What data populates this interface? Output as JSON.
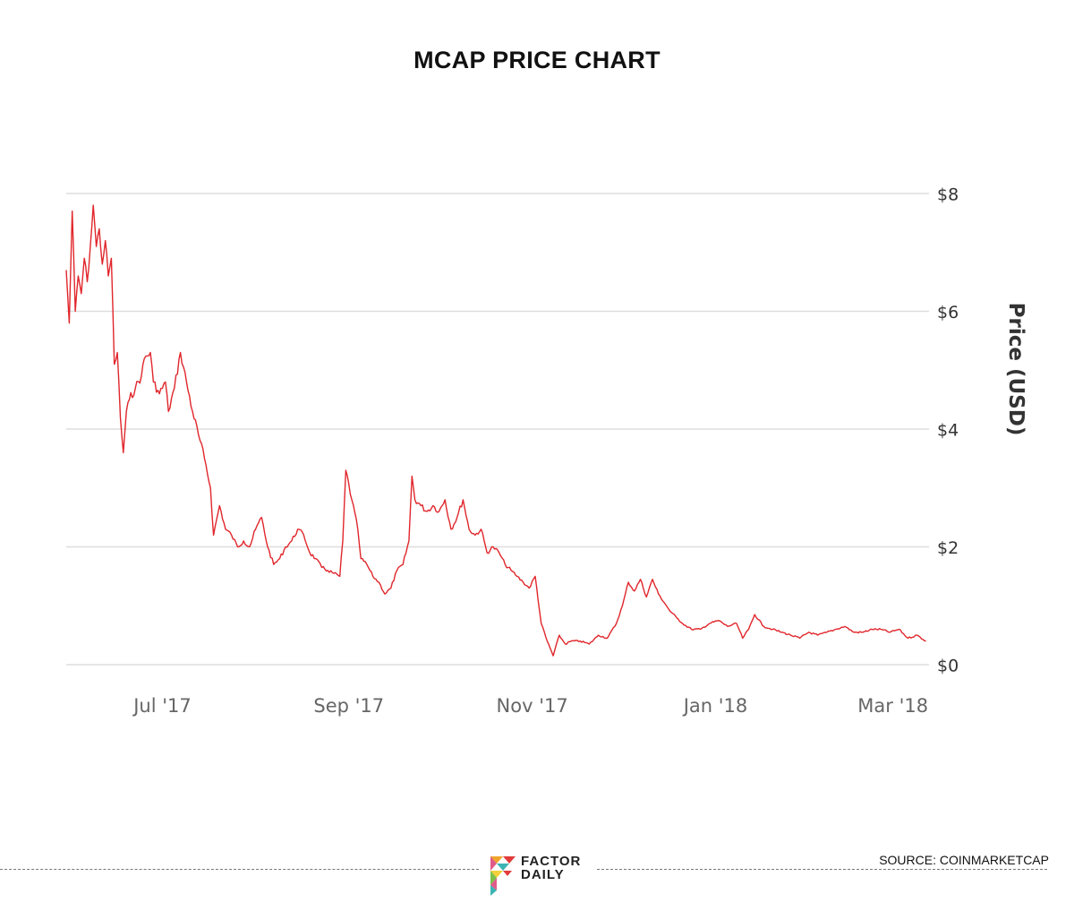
{
  "chart_data": {
    "type": "line",
    "title": "MCAP PRICE CHART",
    "ylabel": "Price (USD)",
    "xlabel": "",
    "ylim": [
      0,
      8
    ],
    "yticks": [
      {
        "value": 0,
        "label": "$0"
      },
      {
        "value": 2,
        "label": "$2"
      },
      {
        "value": 4,
        "label": "$4"
      },
      {
        "value": 6,
        "label": "$6"
      },
      {
        "value": 8,
        "label": "$8"
      }
    ],
    "xlim": [
      "2017-05-30",
      "2018-03-13"
    ],
    "xticks": [
      {
        "date": "2017-07-01",
        "label": "Jul '17"
      },
      {
        "date": "2017-09-01",
        "label": "Sep '17"
      },
      {
        "date": "2017-11-01",
        "label": "Nov '17"
      },
      {
        "date": "2018-01-01",
        "label": "Jan '18"
      },
      {
        "date": "2018-03-01",
        "label": "Mar '18"
      }
    ],
    "series": [
      {
        "name": "MCAP",
        "color": "#e0262b",
        "points": [
          [
            "2017-05-30",
            6.7
          ],
          [
            "2017-05-31",
            5.8
          ],
          [
            "2017-06-01",
            7.7
          ],
          [
            "2017-06-02",
            6.0
          ],
          [
            "2017-06-03",
            6.6
          ],
          [
            "2017-06-04",
            6.3
          ],
          [
            "2017-06-05",
            6.9
          ],
          [
            "2017-06-06",
            6.5
          ],
          [
            "2017-06-07",
            7.1
          ],
          [
            "2017-06-08",
            7.8
          ],
          [
            "2017-06-09",
            7.1
          ],
          [
            "2017-06-10",
            7.4
          ],
          [
            "2017-06-11",
            6.8
          ],
          [
            "2017-06-12",
            7.2
          ],
          [
            "2017-06-13",
            6.6
          ],
          [
            "2017-06-14",
            6.9
          ],
          [
            "2017-06-15",
            5.1
          ],
          [
            "2017-06-16",
            5.3
          ],
          [
            "2017-06-17",
            4.2
          ],
          [
            "2017-06-18",
            3.6
          ],
          [
            "2017-06-19",
            4.3
          ],
          [
            "2017-06-20",
            4.5
          ],
          [
            "2017-06-22",
            4.7
          ],
          [
            "2017-06-24",
            4.9
          ],
          [
            "2017-06-25",
            5.2
          ],
          [
            "2017-06-27",
            5.3
          ],
          [
            "2017-06-28",
            4.8
          ],
          [
            "2017-06-30",
            4.6
          ],
          [
            "2017-07-02",
            4.8
          ],
          [
            "2017-07-03",
            4.3
          ],
          [
            "2017-07-05",
            4.7
          ],
          [
            "2017-07-07",
            5.3
          ],
          [
            "2017-07-09",
            4.8
          ],
          [
            "2017-07-11",
            4.3
          ],
          [
            "2017-07-13",
            3.9
          ],
          [
            "2017-07-15",
            3.5
          ],
          [
            "2017-07-17",
            3.0
          ],
          [
            "2017-07-18",
            2.2
          ],
          [
            "2017-07-20",
            2.7
          ],
          [
            "2017-07-22",
            2.3
          ],
          [
            "2017-07-24",
            2.2
          ],
          [
            "2017-07-26",
            2.0
          ],
          [
            "2017-07-28",
            2.1
          ],
          [
            "2017-07-30",
            2.0
          ],
          [
            "2017-08-01",
            2.3
          ],
          [
            "2017-08-03",
            2.5
          ],
          [
            "2017-08-05",
            2.0
          ],
          [
            "2017-08-07",
            1.7
          ],
          [
            "2017-08-09",
            1.8
          ],
          [
            "2017-08-11",
            2.0
          ],
          [
            "2017-08-13",
            2.1
          ],
          [
            "2017-08-15",
            2.3
          ],
          [
            "2017-08-17",
            2.2
          ],
          [
            "2017-08-19",
            1.9
          ],
          [
            "2017-08-21",
            1.8
          ],
          [
            "2017-08-23",
            1.65
          ],
          [
            "2017-08-25",
            1.6
          ],
          [
            "2017-08-27",
            1.55
          ],
          [
            "2017-08-29",
            1.5
          ],
          [
            "2017-08-30",
            2.1
          ],
          [
            "2017-08-31",
            3.3
          ],
          [
            "2017-09-02",
            2.8
          ],
          [
            "2017-09-04",
            2.3
          ],
          [
            "2017-09-05",
            1.8
          ],
          [
            "2017-09-07",
            1.7
          ],
          [
            "2017-09-09",
            1.5
          ],
          [
            "2017-09-11",
            1.4
          ],
          [
            "2017-09-13",
            1.2
          ],
          [
            "2017-09-15",
            1.3
          ],
          [
            "2017-09-17",
            1.6
          ],
          [
            "2017-09-19",
            1.7
          ],
          [
            "2017-09-21",
            2.1
          ],
          [
            "2017-09-22",
            3.2
          ],
          [
            "2017-09-23",
            2.8
          ],
          [
            "2017-09-25",
            2.7
          ],
          [
            "2017-09-27",
            2.6
          ],
          [
            "2017-09-29",
            2.7
          ],
          [
            "2017-10-01",
            2.6
          ],
          [
            "2017-10-03",
            2.8
          ],
          [
            "2017-10-05",
            2.3
          ],
          [
            "2017-10-07",
            2.5
          ],
          [
            "2017-10-09",
            2.8
          ],
          [
            "2017-10-11",
            2.3
          ],
          [
            "2017-10-13",
            2.2
          ],
          [
            "2017-10-15",
            2.3
          ],
          [
            "2017-10-17",
            1.9
          ],
          [
            "2017-10-19",
            2.0
          ],
          [
            "2017-10-21",
            1.9
          ],
          [
            "2017-10-23",
            1.7
          ],
          [
            "2017-10-25",
            1.6
          ],
          [
            "2017-10-27",
            1.5
          ],
          [
            "2017-10-29",
            1.4
          ],
          [
            "2017-10-31",
            1.3
          ],
          [
            "2017-11-02",
            1.5
          ],
          [
            "2017-11-04",
            0.7
          ],
          [
            "2017-11-06",
            0.4
          ],
          [
            "2017-11-08",
            0.15
          ],
          [
            "2017-11-10",
            0.5
          ],
          [
            "2017-11-12",
            0.35
          ],
          [
            "2017-11-14",
            0.4
          ],
          [
            "2017-11-17",
            0.4
          ],
          [
            "2017-11-20",
            0.35
          ],
          [
            "2017-11-23",
            0.5
          ],
          [
            "2017-11-26",
            0.45
          ],
          [
            "2017-11-29",
            0.7
          ],
          [
            "2017-12-01",
            1.0
          ],
          [
            "2017-12-03",
            1.4
          ],
          [
            "2017-12-05",
            1.25
          ],
          [
            "2017-12-07",
            1.45
          ],
          [
            "2017-12-09",
            1.15
          ],
          [
            "2017-12-11",
            1.45
          ],
          [
            "2017-12-13",
            1.2
          ],
          [
            "2017-12-15",
            1.05
          ],
          [
            "2017-12-17",
            0.9
          ],
          [
            "2017-12-19",
            0.8
          ],
          [
            "2017-12-21",
            0.7
          ],
          [
            "2017-12-24",
            0.6
          ],
          [
            "2017-12-27",
            0.6
          ],
          [
            "2017-12-30",
            0.7
          ],
          [
            "2018-01-02",
            0.75
          ],
          [
            "2018-01-05",
            0.65
          ],
          [
            "2018-01-08",
            0.7
          ],
          [
            "2018-01-10",
            0.45
          ],
          [
            "2018-01-12",
            0.6
          ],
          [
            "2018-01-14",
            0.85
          ],
          [
            "2018-01-17",
            0.65
          ],
          [
            "2018-01-20",
            0.6
          ],
          [
            "2018-01-23",
            0.55
          ],
          [
            "2018-01-26",
            0.5
          ],
          [
            "2018-01-29",
            0.45
          ],
          [
            "2018-02-01",
            0.55
          ],
          [
            "2018-02-04",
            0.5
          ],
          [
            "2018-02-07",
            0.55
          ],
          [
            "2018-02-10",
            0.6
          ],
          [
            "2018-02-13",
            0.65
          ],
          [
            "2018-02-16",
            0.55
          ],
          [
            "2018-02-19",
            0.55
          ],
          [
            "2018-02-22",
            0.6
          ],
          [
            "2018-02-25",
            0.6
          ],
          [
            "2018-02-28",
            0.55
          ],
          [
            "2018-03-03",
            0.6
          ],
          [
            "2018-03-06",
            0.45
          ],
          [
            "2018-03-09",
            0.5
          ],
          [
            "2018-03-12",
            0.4
          ]
        ]
      }
    ]
  },
  "footer": {
    "source": "SOURCE: COINMARKETCAP",
    "logo_line1": "FACTOR",
    "logo_line2": "DAILY"
  }
}
